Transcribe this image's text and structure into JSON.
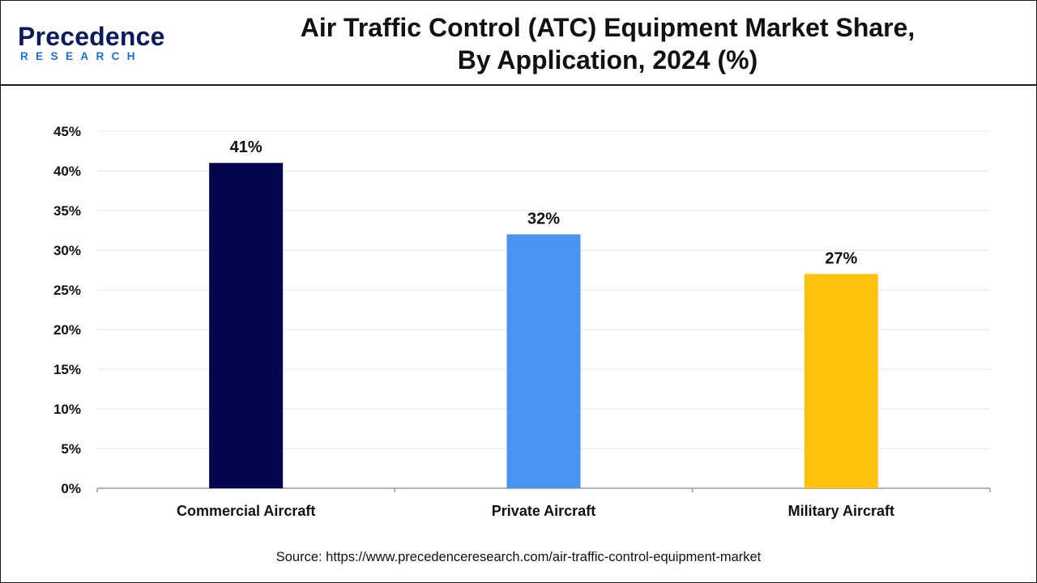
{
  "header": {
    "logo_main": "Precedence",
    "logo_sub": "RESEARCH",
    "title_line1": "Air Traffic Control (ATC) Equipment Market Share,",
    "title_line2": "By Application, 2024 (%)"
  },
  "chart_data": {
    "type": "bar",
    "title": "Air Traffic Control (ATC) Equipment Market Share, By Application, 2024 (%)",
    "categories": [
      "Commercial Aircraft",
      "Private Aircraft",
      "Military Aircraft"
    ],
    "values": [
      41,
      32,
      27
    ],
    "data_labels": [
      "41%",
      "32%",
      "27%"
    ],
    "colors": [
      "#03054f",
      "#4a94f0",
      "#ffc20e"
    ],
    "ylim": [
      0,
      45
    ],
    "yticks": [
      0,
      5,
      10,
      15,
      20,
      25,
      30,
      35,
      40,
      45
    ],
    "ytick_labels": [
      "0%",
      "5%",
      "10%",
      "15%",
      "20%",
      "25%",
      "30%",
      "35%",
      "40%",
      "45%"
    ],
    "xlabel": "",
    "ylabel": "",
    "grid": true,
    "legend": "none"
  },
  "footer": {
    "source": "Source: https://www.precedenceresearch.com/air-traffic-control-equipment-market"
  }
}
